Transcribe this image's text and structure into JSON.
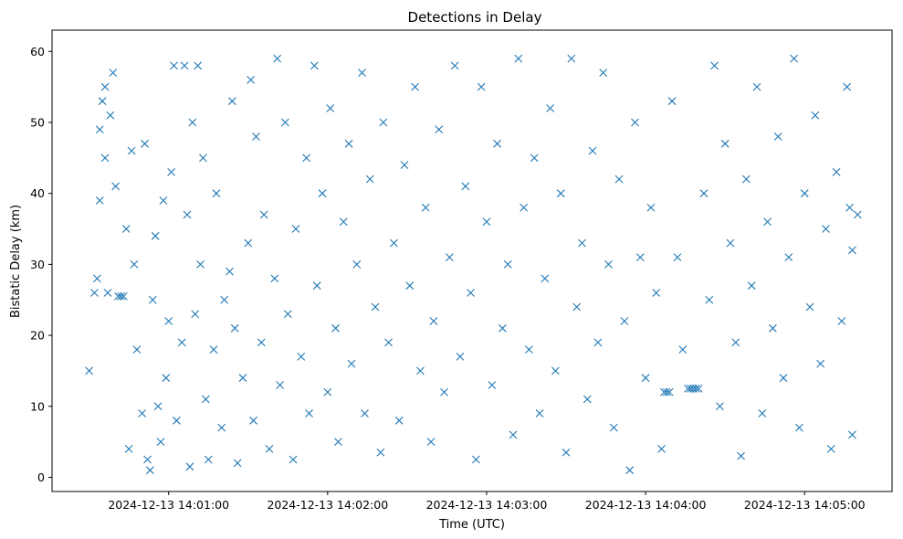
{
  "chart_data": {
    "type": "scatter",
    "title": "Detections in Delay",
    "xlabel": "Time (UTC)",
    "ylabel": "Bistatic Delay (km)",
    "x_ticks": [
      "2024-12-13 14:01:00",
      "2024-12-13 14:02:00",
      "2024-12-13 14:03:00",
      "2024-12-13 14:04:00",
      "2024-12-13 14:05:00"
    ],
    "y_ticks": [
      "0",
      "10",
      "20",
      "30",
      "40",
      "50",
      "60"
    ],
    "xlim": [
      "2024-12-13 14:00:16",
      "2024-12-13 14:05:33"
    ],
    "ylim": [
      -2,
      63
    ],
    "marker": "x",
    "grid": false,
    "color": "#1f77b4",
    "series": [
      {
        "points": [
          [
            "2024-12-13 14:00:30",
            15
          ],
          [
            "2024-12-13 14:00:32",
            26
          ],
          [
            "2024-12-13 14:00:33",
            28
          ],
          [
            "2024-12-13 14:00:34",
            39
          ],
          [
            "2024-12-13 14:00:34",
            49
          ],
          [
            "2024-12-13 14:00:35",
            53
          ],
          [
            "2024-12-13 14:00:36",
            45
          ],
          [
            "2024-12-13 14:00:36",
            55
          ],
          [
            "2024-12-13 14:00:37",
            26
          ],
          [
            "2024-12-13 14:00:38",
            51
          ],
          [
            "2024-12-13 14:00:39",
            57
          ],
          [
            "2024-12-13 14:00:40",
            41
          ],
          [
            "2024-12-13 14:00:41",
            25.5
          ],
          [
            "2024-12-13 14:00:42",
            25.5
          ],
          [
            "2024-12-13 14:00:43",
            25.5
          ],
          [
            "2024-12-13 14:00:44",
            35
          ],
          [
            "2024-12-13 14:00:45",
            4
          ],
          [
            "2024-12-13 14:00:46",
            46
          ],
          [
            "2024-12-13 14:00:47",
            30
          ],
          [
            "2024-12-13 14:00:48",
            18
          ],
          [
            "2024-12-13 14:00:50",
            9
          ],
          [
            "2024-12-13 14:00:51",
            47
          ],
          [
            "2024-12-13 14:00:52",
            2.5
          ],
          [
            "2024-12-13 14:00:53",
            1
          ],
          [
            "2024-12-13 14:00:54",
            25
          ],
          [
            "2024-12-13 14:00:55",
            34
          ],
          [
            "2024-12-13 14:00:56",
            10
          ],
          [
            "2024-12-13 14:00:57",
            5
          ],
          [
            "2024-12-13 14:00:58",
            39
          ],
          [
            "2024-12-13 14:00:59",
            14
          ],
          [
            "2024-12-13 14:01:00",
            22
          ],
          [
            "2024-12-13 14:01:01",
            43
          ],
          [
            "2024-12-13 14:01:02",
            58
          ],
          [
            "2024-12-13 14:01:03",
            8
          ],
          [
            "2024-12-13 14:01:05",
            19
          ],
          [
            "2024-12-13 14:01:06",
            58
          ],
          [
            "2024-12-13 14:01:07",
            37
          ],
          [
            "2024-12-13 14:01:08",
            1.5
          ],
          [
            "2024-12-13 14:01:09",
            50
          ],
          [
            "2024-12-13 14:01:10",
            23
          ],
          [
            "2024-12-13 14:01:11",
            58
          ],
          [
            "2024-12-13 14:01:12",
            30
          ],
          [
            "2024-12-13 14:01:13",
            45
          ],
          [
            "2024-12-13 14:01:14",
            11
          ],
          [
            "2024-12-13 14:01:15",
            2.5
          ],
          [
            "2024-12-13 14:01:17",
            18
          ],
          [
            "2024-12-13 14:01:18",
            40
          ],
          [
            "2024-12-13 14:01:20",
            7
          ],
          [
            "2024-12-13 14:01:21",
            25
          ],
          [
            "2024-12-13 14:01:23",
            29
          ],
          [
            "2024-12-13 14:01:24",
            53
          ],
          [
            "2024-12-13 14:01:25",
            21
          ],
          [
            "2024-12-13 14:01:26",
            2
          ],
          [
            "2024-12-13 14:01:28",
            14
          ],
          [
            "2024-12-13 14:01:30",
            33
          ],
          [
            "2024-12-13 14:01:31",
            56
          ],
          [
            "2024-12-13 14:01:32",
            8
          ],
          [
            "2024-12-13 14:01:33",
            48
          ],
          [
            "2024-12-13 14:01:35",
            19
          ],
          [
            "2024-12-13 14:01:36",
            37
          ],
          [
            "2024-12-13 14:01:38",
            4
          ],
          [
            "2024-12-13 14:01:40",
            28
          ],
          [
            "2024-12-13 14:01:41",
            59
          ],
          [
            "2024-12-13 14:01:42",
            13
          ],
          [
            "2024-12-13 14:01:44",
            50
          ],
          [
            "2024-12-13 14:01:45",
            23
          ],
          [
            "2024-12-13 14:01:47",
            2.5
          ],
          [
            "2024-12-13 14:01:48",
            35
          ],
          [
            "2024-12-13 14:01:50",
            17
          ],
          [
            "2024-12-13 14:01:52",
            45
          ],
          [
            "2024-12-13 14:01:53",
            9
          ],
          [
            "2024-12-13 14:01:55",
            58
          ],
          [
            "2024-12-13 14:01:56",
            27
          ],
          [
            "2024-12-13 14:01:58",
            40
          ],
          [
            "2024-12-13 14:02:00",
            12
          ],
          [
            "2024-12-13 14:02:01",
            52
          ],
          [
            "2024-12-13 14:02:03",
            21
          ],
          [
            "2024-12-13 14:02:04",
            5
          ],
          [
            "2024-12-13 14:02:06",
            36
          ],
          [
            "2024-12-13 14:02:08",
            47
          ],
          [
            "2024-12-13 14:02:09",
            16
          ],
          [
            "2024-12-13 14:02:11",
            30
          ],
          [
            "2024-12-13 14:02:13",
            57
          ],
          [
            "2024-12-13 14:02:14",
            9
          ],
          [
            "2024-12-13 14:02:16",
            42
          ],
          [
            "2024-12-13 14:02:18",
            24
          ],
          [
            "2024-12-13 14:02:20",
            3.5
          ],
          [
            "2024-12-13 14:02:21",
            50
          ],
          [
            "2024-12-13 14:02:23",
            19
          ],
          [
            "2024-12-13 14:02:25",
            33
          ],
          [
            "2024-12-13 14:02:27",
            8
          ],
          [
            "2024-12-13 14:02:29",
            44
          ],
          [
            "2024-12-13 14:02:31",
            27
          ],
          [
            "2024-12-13 14:02:33",
            55
          ],
          [
            "2024-12-13 14:02:35",
            15
          ],
          [
            "2024-12-13 14:02:37",
            38
          ],
          [
            "2024-12-13 14:02:39",
            5
          ],
          [
            "2024-12-13 14:02:40",
            22
          ],
          [
            "2024-12-13 14:02:42",
            49
          ],
          [
            "2024-12-13 14:02:44",
            12
          ],
          [
            "2024-12-13 14:02:46",
            31
          ],
          [
            "2024-12-13 14:02:48",
            58
          ],
          [
            "2024-12-13 14:02:50",
            17
          ],
          [
            "2024-12-13 14:02:52",
            41
          ],
          [
            "2024-12-13 14:02:54",
            26
          ],
          [
            "2024-12-13 14:02:56",
            2.5
          ],
          [
            "2024-12-13 14:02:58",
            55
          ],
          [
            "2024-12-13 14:03:00",
            36
          ],
          [
            "2024-12-13 14:03:02",
            13
          ],
          [
            "2024-12-13 14:03:04",
            47
          ],
          [
            "2024-12-13 14:03:06",
            21
          ],
          [
            "2024-12-13 14:03:08",
            30
          ],
          [
            "2024-12-13 14:03:10",
            6
          ],
          [
            "2024-12-13 14:03:12",
            59
          ],
          [
            "2024-12-13 14:03:14",
            38
          ],
          [
            "2024-12-13 14:03:16",
            18
          ],
          [
            "2024-12-13 14:03:18",
            45
          ],
          [
            "2024-12-13 14:03:20",
            9
          ],
          [
            "2024-12-13 14:03:22",
            28
          ],
          [
            "2024-12-13 14:03:24",
            52
          ],
          [
            "2024-12-13 14:03:26",
            15
          ],
          [
            "2024-12-13 14:03:28",
            40
          ],
          [
            "2024-12-13 14:03:30",
            3.5
          ],
          [
            "2024-12-13 14:03:32",
            59
          ],
          [
            "2024-12-13 14:03:34",
            24
          ],
          [
            "2024-12-13 14:03:36",
            33
          ],
          [
            "2024-12-13 14:03:38",
            11
          ],
          [
            "2024-12-13 14:03:40",
            46
          ],
          [
            "2024-12-13 14:03:42",
            19
          ],
          [
            "2024-12-13 14:03:44",
            57
          ],
          [
            "2024-12-13 14:03:46",
            30
          ],
          [
            "2024-12-13 14:03:48",
            7
          ],
          [
            "2024-12-13 14:03:50",
            42
          ],
          [
            "2024-12-13 14:03:52",
            22
          ],
          [
            "2024-12-13 14:03:54",
            1
          ],
          [
            "2024-12-13 14:03:56",
            50
          ],
          [
            "2024-12-13 14:03:58",
            31
          ],
          [
            "2024-12-13 14:04:00",
            14
          ],
          [
            "2024-12-13 14:04:02",
            38
          ],
          [
            "2024-12-13 14:04:04",
            26
          ],
          [
            "2024-12-13 14:04:06",
            4
          ],
          [
            "2024-12-13 14:04:07",
            12
          ],
          [
            "2024-12-13 14:04:08",
            12
          ],
          [
            "2024-12-13 14:04:09",
            12
          ],
          [
            "2024-12-13 14:04:10",
            53
          ],
          [
            "2024-12-13 14:04:12",
            31
          ],
          [
            "2024-12-13 14:04:14",
            18
          ],
          [
            "2024-12-13 14:04:16",
            12.5
          ],
          [
            "2024-12-13 14:04:17",
            12.5
          ],
          [
            "2024-12-13 14:04:18",
            12.5
          ],
          [
            "2024-12-13 14:04:19",
            12.5
          ],
          [
            "2024-12-13 14:04:20",
            12.5
          ],
          [
            "2024-12-13 14:04:22",
            40
          ],
          [
            "2024-12-13 14:04:24",
            25
          ],
          [
            "2024-12-13 14:04:26",
            58
          ],
          [
            "2024-12-13 14:04:28",
            10
          ],
          [
            "2024-12-13 14:04:30",
            47
          ],
          [
            "2024-12-13 14:04:32",
            33
          ],
          [
            "2024-12-13 14:04:34",
            19
          ],
          [
            "2024-12-13 14:04:36",
            3
          ],
          [
            "2024-12-13 14:04:38",
            42
          ],
          [
            "2024-12-13 14:04:40",
            27
          ],
          [
            "2024-12-13 14:04:42",
            55
          ],
          [
            "2024-12-13 14:04:44",
            9
          ],
          [
            "2024-12-13 14:04:46",
            36
          ],
          [
            "2024-12-13 14:04:48",
            21
          ],
          [
            "2024-12-13 14:04:50",
            48
          ],
          [
            "2024-12-13 14:04:52",
            14
          ],
          [
            "2024-12-13 14:04:54",
            31
          ],
          [
            "2024-12-13 14:04:56",
            59
          ],
          [
            "2024-12-13 14:04:58",
            7
          ],
          [
            "2024-12-13 14:05:00",
            40
          ],
          [
            "2024-12-13 14:05:02",
            24
          ],
          [
            "2024-12-13 14:05:04",
            51
          ],
          [
            "2024-12-13 14:05:06",
            16
          ],
          [
            "2024-12-13 14:05:08",
            35
          ],
          [
            "2024-12-13 14:05:10",
            4
          ],
          [
            "2024-12-13 14:05:12",
            43
          ],
          [
            "2024-12-13 14:05:14",
            22
          ],
          [
            "2024-12-13 14:05:16",
            55
          ],
          [
            "2024-12-13 14:05:17",
            38
          ],
          [
            "2024-12-13 14:05:18",
            6
          ],
          [
            "2024-12-13 14:05:18",
            32
          ],
          [
            "2024-12-13 14:05:20",
            37
          ]
        ]
      }
    ]
  }
}
